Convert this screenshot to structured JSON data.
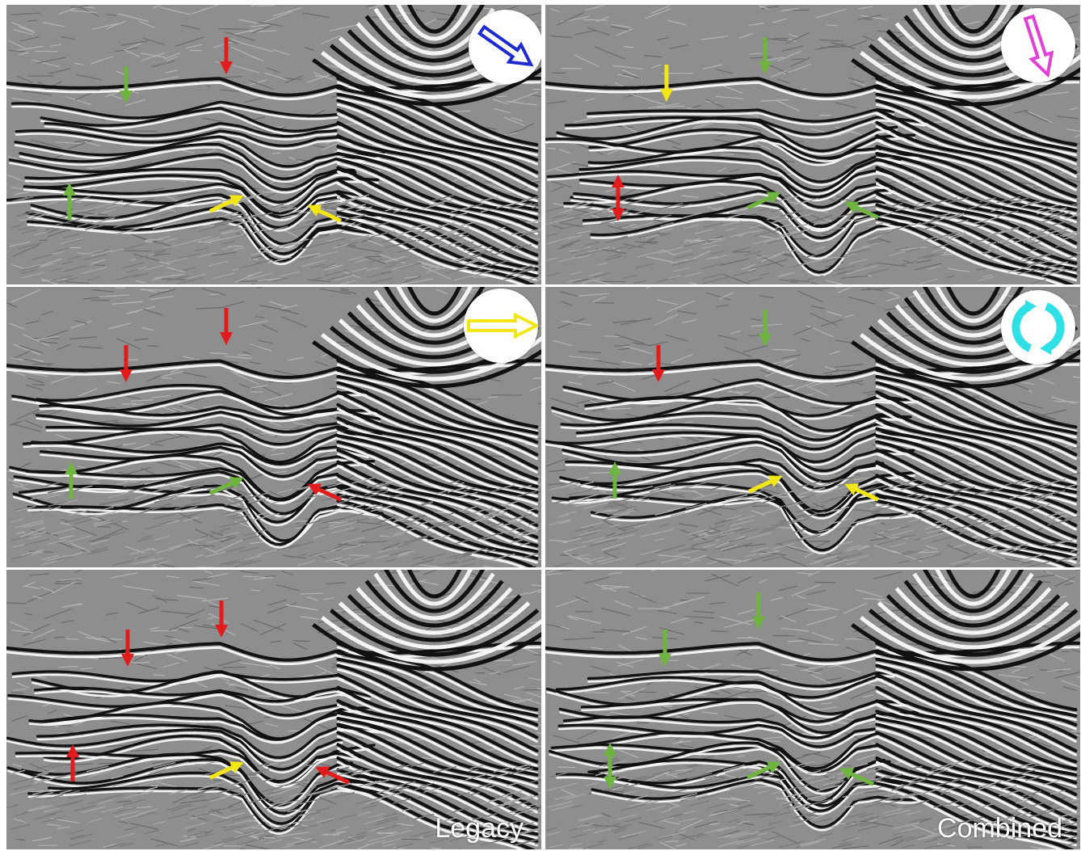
{
  "figure": {
    "colors": {
      "background": "#8e8e8e",
      "trough": "#111111",
      "peak": "#f4f4f4",
      "red": "#e21c1c",
      "green": "#6fb43f",
      "yellow": "#f2e617",
      "blue": "#1d2ad1",
      "magenta": "#e23fd6",
      "cyan": "#2fe0e6"
    },
    "panels": [
      {
        "id": "r1c1",
        "badge": {
          "icon": "blue-diagonal-arrow-icon",
          "color": "#1d2ad1"
        },
        "label": "",
        "annotations": [
          {
            "color": "red",
            "direction": "down"
          },
          {
            "color": "green",
            "direction": "down"
          },
          {
            "color": "green",
            "direction": "up"
          },
          {
            "color": "yellow",
            "direction": "up-right"
          },
          {
            "color": "yellow",
            "direction": "down-left"
          }
        ]
      },
      {
        "id": "r1c2",
        "badge": {
          "icon": "magenta-down-arrow-icon",
          "color": "#e23fd6"
        },
        "label": "",
        "annotations": [
          {
            "color": "green",
            "direction": "down"
          },
          {
            "color": "yellow",
            "direction": "down"
          },
          {
            "color": "red",
            "direction": "up-down"
          },
          {
            "color": "green",
            "direction": "up-right"
          },
          {
            "color": "green",
            "direction": "down-left"
          }
        ]
      },
      {
        "id": "r2c1",
        "badge": {
          "icon": "yellow-right-arrow-icon",
          "color": "#f2e617"
        },
        "label": "",
        "annotations": [
          {
            "color": "red",
            "direction": "down"
          },
          {
            "color": "red",
            "direction": "down"
          },
          {
            "color": "green",
            "direction": "up"
          },
          {
            "color": "green",
            "direction": "up-right"
          },
          {
            "color": "red",
            "direction": "down-left"
          }
        ]
      },
      {
        "id": "r2c2",
        "badge": {
          "icon": "cyan-circular-arrows-icon",
          "color": "#2fe0e6"
        },
        "label": "",
        "annotations": [
          {
            "color": "green",
            "direction": "down"
          },
          {
            "color": "red",
            "direction": "down"
          },
          {
            "color": "green",
            "direction": "up"
          },
          {
            "color": "yellow",
            "direction": "up-right"
          },
          {
            "color": "yellow",
            "direction": "down-left"
          }
        ]
      },
      {
        "id": "r3c1",
        "badge": null,
        "label": "Legacy",
        "annotations": [
          {
            "color": "red",
            "direction": "down"
          },
          {
            "color": "red",
            "direction": "down"
          },
          {
            "color": "red",
            "direction": "up"
          },
          {
            "color": "yellow",
            "direction": "up-right"
          },
          {
            "color": "red",
            "direction": "down-left"
          }
        ]
      },
      {
        "id": "r3c2",
        "badge": null,
        "label": "Combined",
        "annotations": [
          {
            "color": "green",
            "direction": "down"
          },
          {
            "color": "green",
            "direction": "down"
          },
          {
            "color": "green",
            "direction": "up-down"
          },
          {
            "color": "green",
            "direction": "up-right"
          },
          {
            "color": "green",
            "direction": "down-left"
          }
        ]
      }
    ]
  }
}
